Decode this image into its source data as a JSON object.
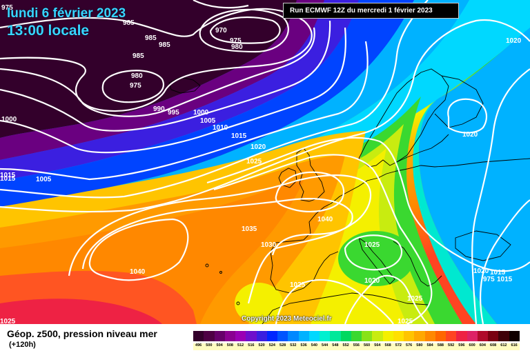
{
  "header": {
    "date_line": "lundi 6 février 2023",
    "time_line": "13:00 locale",
    "run_info": "Run ECMWF 12Z du mercredi 1 février 2023"
  },
  "copyright": "Copyright 2023 Meteociel.fr",
  "legend": {
    "title": "Géop. z500, pression niveau mer",
    "subtitle": "(+120h)",
    "ticks": [
      "496",
      "500",
      "504",
      "508",
      "512",
      "516",
      "520",
      "524",
      "528",
      "532",
      "536",
      "540",
      "544",
      "548",
      "552",
      "556",
      "560",
      "564",
      "568",
      "572",
      "576",
      "580",
      "584",
      "588",
      "592",
      "596",
      "600",
      "604",
      "608",
      "612",
      "616"
    ],
    "colors": [
      "#33002b",
      "#4e0044",
      "#66006a",
      "#8a0091",
      "#9a00b4",
      "#6f0fcc",
      "#3b1fe0",
      "#0026ff",
      "#0055ff",
      "#0088ff",
      "#00b2ff",
      "#00d8ff",
      "#00f0d0",
      "#00e89a",
      "#00d860",
      "#3ad830",
      "#88e218",
      "#c8ec10",
      "#f4f000",
      "#ffe000",
      "#ffc400",
      "#ffa800",
      "#ff8800",
      "#ff6600",
      "#ff4422",
      "#ee2244",
      "#dd2266",
      "#b00a2a",
      "#7a0010",
      "#400008",
      "#100000"
    ]
  },
  "isobar_labels": [
    "975",
    "985",
    "970",
    "975",
    "980",
    "985",
    "985",
    "985",
    "980",
    "975",
    "990",
    "995",
    "1000",
    "1005",
    "1010",
    "1000",
    "1015",
    "1020",
    "1025",
    "1015",
    "1005",
    "1020",
    "1035",
    "1030",
    "1040",
    "1040",
    "1025",
    "1020",
    "1025",
    "1025",
    "1020",
    "1015",
    "1015",
    "1020",
    "1025",
    "1015",
    "1025",
    "975"
  ]
}
